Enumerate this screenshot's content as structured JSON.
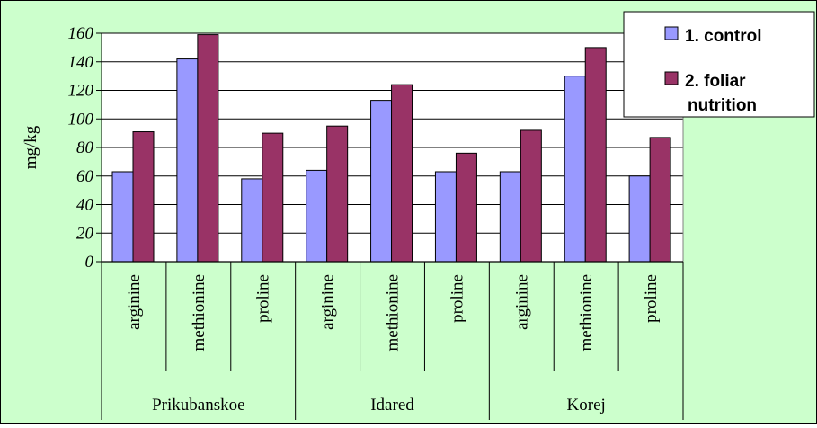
{
  "chart_data": {
    "type": "bar",
    "title": "",
    "xlabel": "",
    "ylabel": "mg/kg",
    "ylim": [
      0,
      160
    ],
    "yticks": [
      "0",
      "20",
      "40",
      "60",
      "80",
      "100",
      "120",
      "140",
      "160"
    ],
    "grid": true,
    "legend_position": "top-right",
    "groups": [
      "Prikubanskoe",
      "Idared",
      "Korej"
    ],
    "categories": [
      "arginine",
      "methionine",
      "proline",
      "arginine",
      "methionine",
      "proline",
      "arginine",
      "methionine",
      "proline"
    ],
    "series": [
      {
        "name": "1. control",
        "color": "#9999ff",
        "values": [
          63,
          142,
          58,
          64,
          113,
          63,
          63,
          130,
          60
        ]
      },
      {
        "name": "2. foliar nutrition",
        "color": "#993366",
        "values": [
          91,
          159,
          90,
          95,
          124,
          76,
          92,
          150,
          87
        ]
      }
    ],
    "legend_lines": [
      [
        "1. control"
      ],
      [
        "2. foliar",
        "nutrition"
      ]
    ],
    "colors": {
      "background": "#ccffcc",
      "plot_area": "#ffffff",
      "gridline": "#000000"
    }
  }
}
